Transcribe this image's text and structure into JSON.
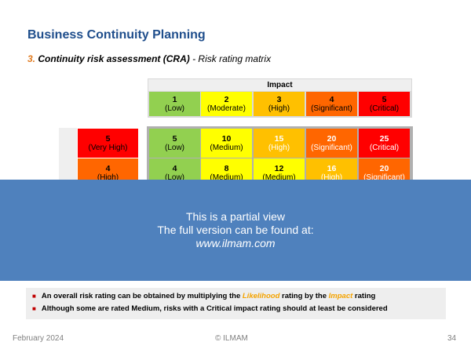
{
  "title": "Business Continuity Planning",
  "subtitle": {
    "number": "3.",
    "bold": "Continuity risk assessment (CRA)",
    "rest": " - Risk rating matrix"
  },
  "impact": {
    "header": "Impact",
    "levels": [
      {
        "value": "1",
        "label": "(Low)",
        "color": "#92d050"
      },
      {
        "value": "2",
        "label": "(Moderate)",
        "color": "#ffff00"
      },
      {
        "value": "3",
        "label": "(High)",
        "color": "#ffc000"
      },
      {
        "value": "4",
        "label": "(Significant)",
        "color": "#ff6600"
      },
      {
        "value": "5",
        "label": "(Critical)",
        "color": "#ff0000"
      }
    ]
  },
  "likelihood": [
    {
      "value": "5",
      "label": "(Very High)",
      "color": "#ff0000"
    },
    {
      "value": "4",
      "label": "(High)",
      "color": "#ff6600"
    }
  ],
  "matrix": [
    [
      {
        "value": "5",
        "label": "(Low)",
        "color": "#92d050",
        "text_color": "#000000"
      },
      {
        "value": "10",
        "label": "(Medium)",
        "color": "#ffff00",
        "text_color": "#000000"
      },
      {
        "value": "15",
        "label": "(High)",
        "color": "#ffc000",
        "text_color": "#ffffff"
      },
      {
        "value": "20",
        "label": "(Significant)",
        "color": "#ff6600",
        "text_color": "#ffffff"
      },
      {
        "value": "25",
        "label": "(Critical)",
        "color": "#ff0000",
        "text_color": "#ffffff"
      }
    ],
    [
      {
        "value": "4",
        "label": "(Low)",
        "color": "#92d050",
        "text_color": "#000000"
      },
      {
        "value": "8",
        "label": "(Medium)",
        "color": "#ffff00",
        "text_color": "#000000"
      },
      {
        "value": "12",
        "label": "(Medium)",
        "color": "#ffff00",
        "text_color": "#000000"
      },
      {
        "value": "16",
        "label": "(High)",
        "color": "#ffc000",
        "text_color": "#ffffff"
      },
      {
        "value": "20",
        "label": "(Significant)",
        "color": "#ff6600",
        "text_color": "#ffffff"
      }
    ]
  ],
  "overlay": {
    "line1": "This is a partial view",
    "line2": "The full version can be found at:",
    "url": "www.ilmam.com"
  },
  "notes": {
    "note1": {
      "pre": "An overall risk rating can be obtained by multiplying the ",
      "likelihood": "Likelihood",
      "mid": " rating by the ",
      "impact": "Impact",
      "post": " rating"
    },
    "note2": "Although some are rated Medium, risks with a Critical impact rating should at least be considered"
  },
  "footer": {
    "date": "February 2024",
    "copyright": "© ILMAM",
    "page": "34"
  }
}
